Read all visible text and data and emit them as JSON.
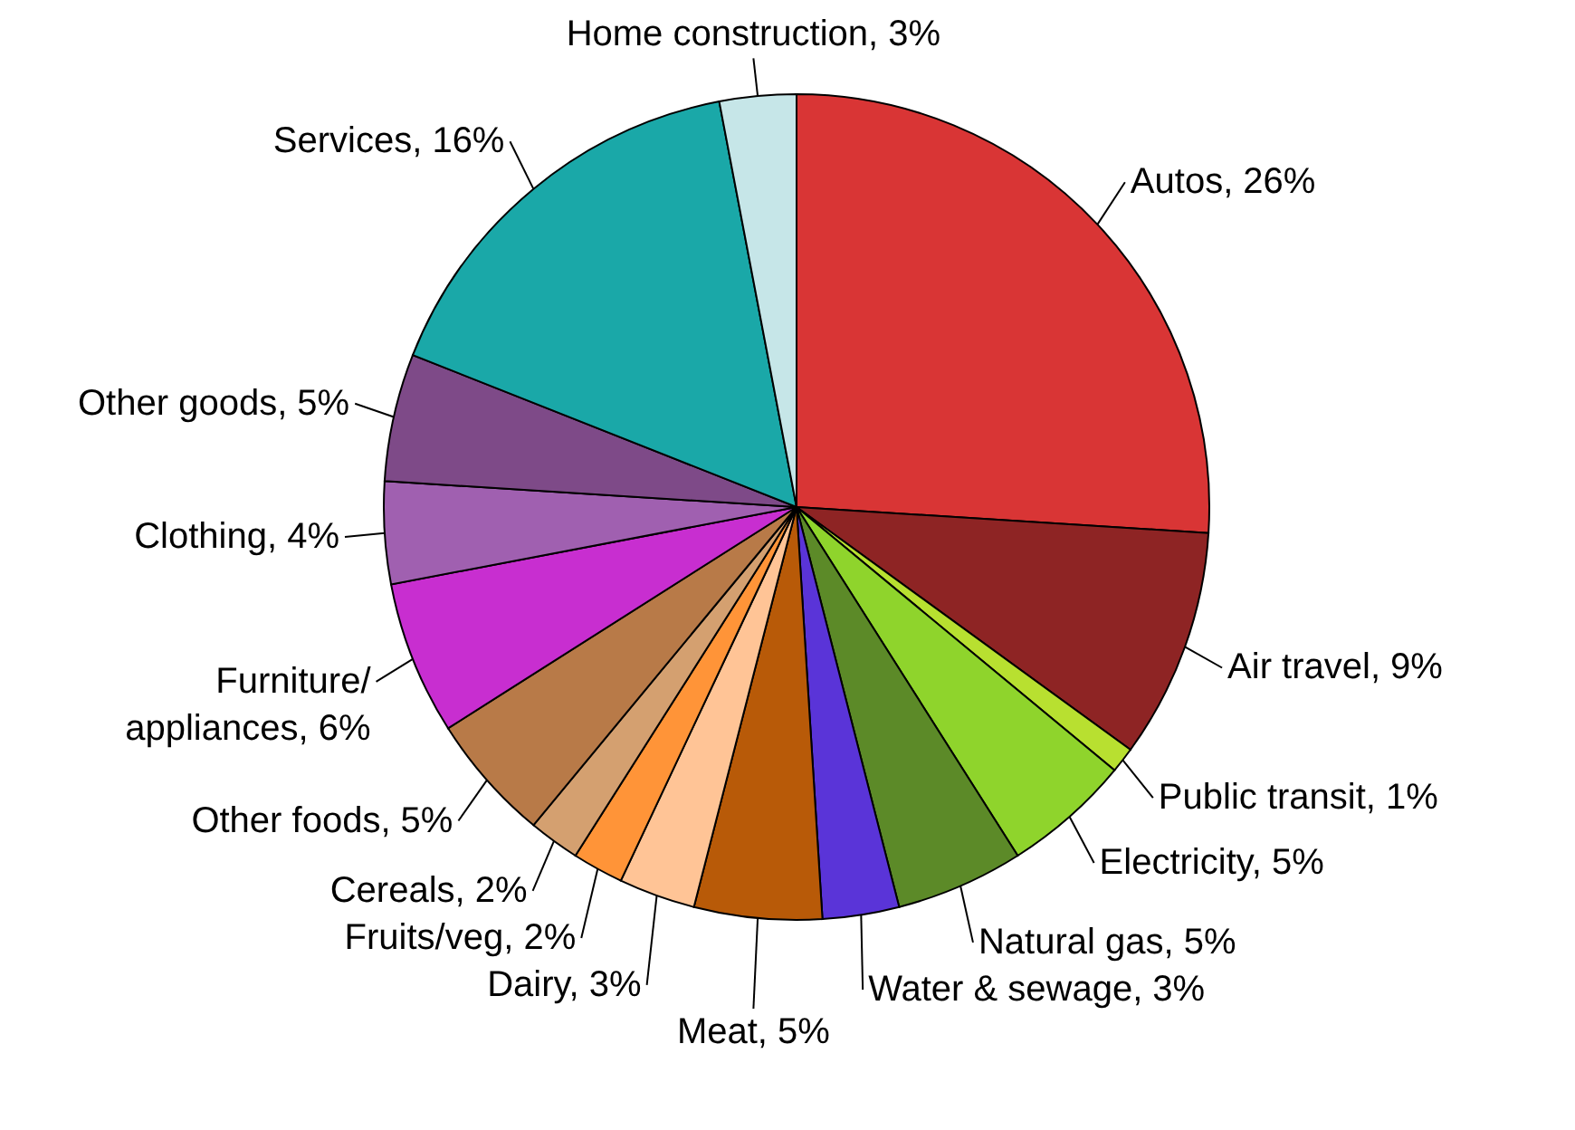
{
  "chart_data": {
    "type": "pie",
    "categories": [
      "Autos",
      "Air travel",
      "Public transit",
      "Electricity",
      "Natural gas",
      "Water & sewage",
      "Meat",
      "Dairy",
      "Fruits/veg",
      "Cereals",
      "Other foods",
      "Furniture/\nappliances",
      "Clothing",
      "Other goods",
      "Services",
      "Home construction"
    ],
    "values": [
      26,
      9,
      1,
      5,
      5,
      3,
      5,
      3,
      2,
      2,
      5,
      6,
      4,
      5,
      16,
      3
    ],
    "value_labels": [
      "26%",
      "9%",
      "1%",
      "5%",
      "5%",
      "3%",
      "5%",
      "3%",
      "2%",
      "2%",
      "5%",
      "6%",
      "4%",
      "5%",
      "16%",
      "3%"
    ],
    "colors": [
      "#d93535",
      "#8e2424",
      "#b8e030",
      "#8fd42c",
      "#5c8a28",
      "#5a34d8",
      "#b85a08",
      "#ffc496",
      "#ff9438",
      "#d4a070",
      "#b87a48",
      "#c82ed0",
      "#a060b0",
      "#7e4a88",
      "#1aa8a8",
      "#c6e6e8"
    ],
    "legend": false
  }
}
